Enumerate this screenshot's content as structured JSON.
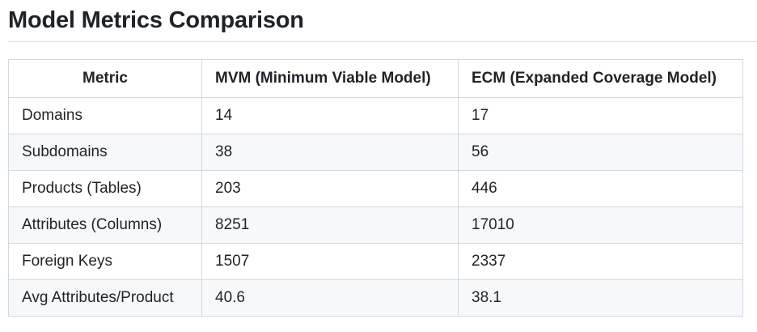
{
  "title": "Model Metrics Comparison",
  "table": {
    "headers": [
      "Metric",
      "MVM (Minimum Viable Model)",
      "ECM (Expanded Coverage Model)"
    ],
    "rows": [
      [
        "Domains",
        "14",
        "17"
      ],
      [
        "Subdomains",
        "38",
        "56"
      ],
      [
        "Products (Tables)",
        "203",
        "446"
      ],
      [
        "Attributes (Columns)",
        "8251",
        "17010"
      ],
      [
        "Foreign Keys",
        "1507",
        "2337"
      ],
      [
        "Avg Attributes/Product",
        "40.6",
        "38.1"
      ]
    ]
  }
}
